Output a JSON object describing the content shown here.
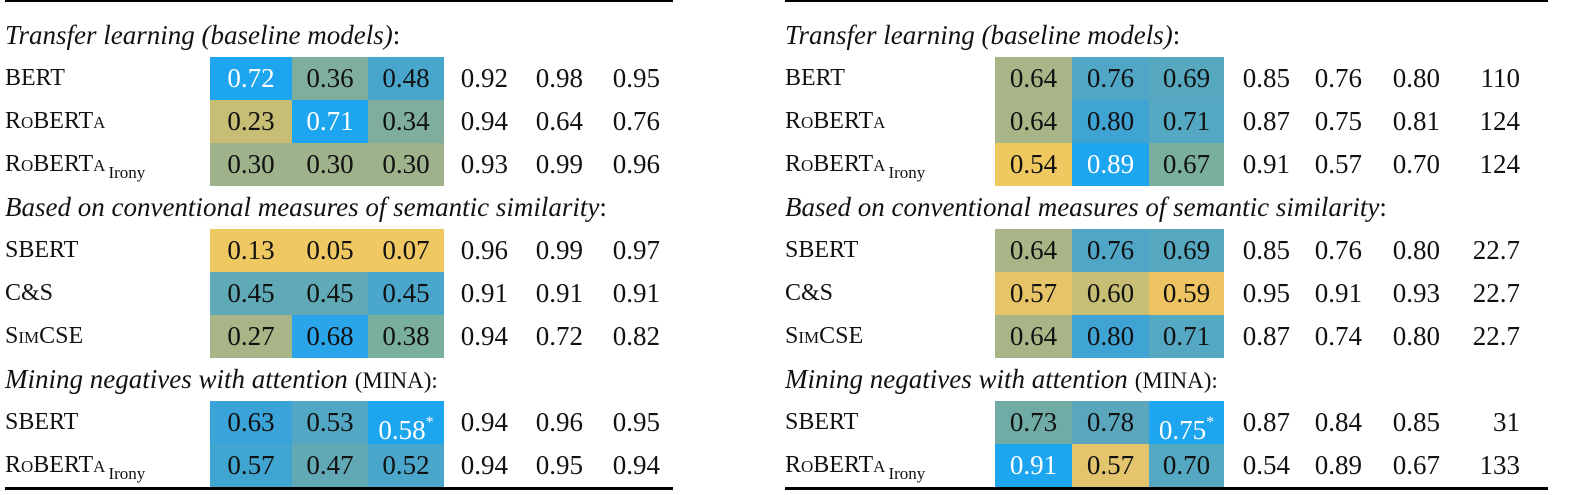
{
  "tables": [
    {
      "sections": [
        {
          "heading": {
            "italic": "Transfer learning (baseline models)",
            "plain": ":"
          },
          "rows": [
            {
              "label": "BERT",
              "cells": [
                {
                  "text": "0.72",
                  "color": "#1ea5f0",
                  "text_color": "#ffffff"
                },
                {
                  "text": "0.36",
                  "color": "#80ae9c"
                },
                {
                  "text": "0.48",
                  "color": "#48a6cd"
                },
                "0.92",
                "0.98",
                "0.95"
              ]
            },
            {
              "label": "RoBERTa",
              "cells": [
                {
                  "text": "0.23",
                  "color": "#c8bd74"
                },
                {
                  "text": "0.71",
                  "color": "#1ea5f0",
                  "text_color": "#ffffff"
                },
                {
                  "text": "0.34",
                  "color": "#80ae9c"
                },
                "0.94",
                "0.64",
                "0.76"
              ]
            },
            {
              "label": "RoBERTa",
              "sub": "Irony",
              "cells": [
                {
                  "text": "0.30",
                  "color": "#9eb38c"
                },
                {
                  "text": "0.30",
                  "color": "#9eb38c"
                },
                {
                  "text": "0.30",
                  "color": "#9eb38c"
                },
                "0.93",
                "0.99",
                "0.96"
              ]
            }
          ]
        },
        {
          "heading": {
            "italic": "Based on conventional measures of semantic similarity",
            "plain": ":"
          },
          "rows": [
            {
              "label": "SBERT",
              "cells": [
                {
                  "text": "0.13",
                  "color": "#f0c862"
                },
                {
                  "text": "0.05",
                  "color": "#f0c862"
                },
                {
                  "text": "0.07",
                  "color": "#f0c862"
                },
                "0.96",
                "0.99",
                "0.97"
              ]
            },
            {
              "label": "C&S",
              "cells": [
                {
                  "text": "0.45",
                  "color": "#60a9b6"
                },
                {
                  "text": "0.45",
                  "color": "#60a9b6"
                },
                {
                  "text": "0.45",
                  "color": "#4aa6cb"
                },
                "0.91",
                "0.91",
                "0.91"
              ]
            },
            {
              "label": "SimCSE",
              "cells": [
                {
                  "text": "0.27",
                  "color": "#a8b586"
                },
                {
                  "text": "0.68",
                  "color": "#2aa5ea"
                },
                {
                  "text": "0.38",
                  "color": "#7aae9e"
                },
                "0.94",
                "0.72",
                "0.82"
              ]
            }
          ]
        },
        {
          "heading": {
            "italic": "Mining negatives with attention",
            "plain": "(MINA):"
          },
          "rows": [
            {
              "label": "SBERT",
              "cells": [
                {
                  "text": "0.63",
                  "color": "#3aa3d8"
                },
                {
                  "text": "0.53",
                  "color": "#52a7c4"
                },
                {
                  "text": "0.58",
                  "sup": "*",
                  "color": "#1ea5f0",
                  "text_color": "#ffffff"
                },
                "0.94",
                "0.96",
                "0.95"
              ]
            },
            {
              "label": "RoBERTa",
              "sub": "Irony",
              "cells": [
                {
                  "text": "0.57",
                  "color": "#40a5d0"
                },
                {
                  "text": "0.47",
                  "color": "#62a9b6"
                },
                {
                  "text": "0.52",
                  "color": "#4aa6ca"
                },
                "0.94",
                "0.95",
                "0.94"
              ]
            }
          ]
        }
      ]
    },
    {
      "sections": [
        {
          "heading": {
            "italic": "Transfer learning (baseline models)",
            "plain": ":"
          },
          "rows": [
            {
              "label": "BERT",
              "cells": [
                {
                  "text": "0.64",
                  "color": "#a8b586"
                },
                {
                  "text": "0.76",
                  "color": "#4fa6c6"
                },
                {
                  "text": "0.69",
                  "color": "#56a8c0"
                },
                "0.85",
                "0.76",
                "0.80",
                "110"
              ]
            },
            {
              "label": "RoBERTa",
              "cells": [
                {
                  "text": "0.64",
                  "color": "#a8b586"
                },
                {
                  "text": "0.80",
                  "color": "#3fa3d3"
                },
                {
                  "text": "0.71",
                  "color": "#55a8c2"
                },
                "0.87",
                "0.75",
                "0.81",
                "124"
              ]
            },
            {
              "label": "RoBERTa",
              "sub": "Irony",
              "cells": [
                {
                  "text": "0.54",
                  "color": "#f0c860"
                },
                {
                  "text": "0.89",
                  "color": "#1ea5f0",
                  "text_color": "#ffffff"
                },
                {
                  "text": "0.67",
                  "color": "#7aae9e"
                },
                "0.91",
                "0.57",
                "0.70",
                "124"
              ]
            }
          ]
        },
        {
          "heading": {
            "italic": "Based on conventional measures of semantic similarity",
            "plain": ":"
          },
          "rows": [
            {
              "label": "SBERT",
              "cells": [
                {
                  "text": "0.64",
                  "color": "#a8b586"
                },
                {
                  "text": "0.76",
                  "color": "#4fa6c6"
                },
                {
                  "text": "0.69",
                  "color": "#56a8c0"
                },
                "0.85",
                "0.76",
                "0.80",
                "22.7"
              ]
            },
            {
              "label": "C&S",
              "cells": [
                {
                  "text": "0.57",
                  "color": "#e8c468"
                },
                {
                  "text": "0.60",
                  "color": "#c8bd74"
                },
                {
                  "text": "0.59",
                  "color": "#eec462"
                },
                "0.95",
                "0.91",
                "0.93",
                "22.7"
              ]
            },
            {
              "label": "SimCSE",
              "cells": [
                {
                  "text": "0.64",
                  "color": "#a8b586"
                },
                {
                  "text": "0.80",
                  "color": "#3fa3d3"
                },
                {
                  "text": "0.71",
                  "color": "#55a8c2"
                },
                "0.87",
                "0.74",
                "0.80",
                "22.7"
              ]
            }
          ]
        },
        {
          "heading": {
            "italic": "Mining negatives with attention",
            "plain": "(MINA):"
          },
          "rows": [
            {
              "label": "SBERT",
              "cells": [
                {
                  "text": "0.73",
                  "color": "#70aba6"
                },
                {
                  "text": "0.78",
                  "color": "#5aa7bd"
                },
                {
                  "text": "0.75",
                  "sup": "*",
                  "color": "#1ea5f0",
                  "text_color": "#ffffff"
                },
                "0.87",
                "0.84",
                "0.85",
                "31"
              ]
            },
            {
              "label": "RoBERTa",
              "sub": "Irony",
              "cells": [
                {
                  "text": "0.91",
                  "color": "#1ea5f0",
                  "text_color": "#ffffff"
                },
                {
                  "text": "0.57",
                  "color": "#e4c46c"
                },
                {
                  "text": "0.70",
                  "color": "#55a8c2"
                },
                "0.54",
                "0.89",
                "0.67",
                "133"
              ]
            }
          ]
        }
      ]
    }
  ]
}
